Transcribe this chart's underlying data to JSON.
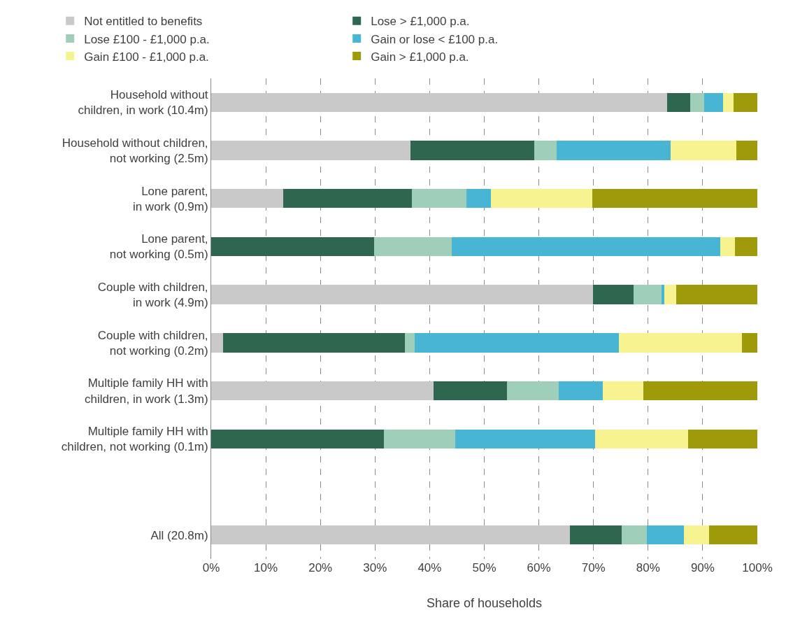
{
  "chart_data": {
    "type": "bar",
    "orientation": "horizontal",
    "stacked": true,
    "xlabel": "Share of households",
    "categories": [
      "Household without\nchildren, in work (10.4m)",
      "Household without children,\nnot working (2.5m)",
      "Lone parent,\nin work (0.9m)",
      "Lone parent,\nnot working (0.5m)",
      "Couple with children,\nin work (4.9m)",
      "Couple with children,\nnot working (0.2m)",
      "Multiple family HH with\nchildren, in work (1.3m)",
      "Multiple family HH with\nchildren, not working (0.1m)",
      null,
      "All (20.8m)"
    ],
    "series": [
      {
        "name": "Not entitled to benefits",
        "color": "#c9c9c9",
        "values": [
          83.5,
          36.5,
          13.2,
          0,
          69.9,
          2.2,
          40.7,
          0,
          null,
          65.7
        ]
      },
      {
        "name": "Lose > £1,000 p.a.",
        "color": "#2f6650",
        "values": [
          4.2,
          22.7,
          23.5,
          29.8,
          7.4,
          33.3,
          13.5,
          31.6,
          null,
          9.5
        ]
      },
      {
        "name": "Lose £100 - £1,000 p.a.",
        "color": "#9fcfb9",
        "values": [
          2.6,
          4.1,
          10.0,
          14.2,
          5.2,
          1.8,
          9.4,
          13.1,
          null,
          4.6
        ]
      },
      {
        "name": "Gain or lose < £100 p.a.",
        "color": "#48b5d5",
        "values": [
          3.4,
          20.8,
          4.5,
          49.2,
          0.5,
          37.3,
          8.1,
          25.6,
          null,
          6.8
        ]
      },
      {
        "name": "Gain £100 - £1,000 p.a.",
        "color": "#f7f391",
        "values": [
          1.9,
          12.1,
          18.6,
          2.7,
          2.1,
          22.6,
          7.4,
          17.0,
          null,
          4.6
        ]
      },
      {
        "name": "Gain > £1,000 p.a.",
        "color": "#9e9a0a",
        "values": [
          4.4,
          3.8,
          30.2,
          4.1,
          14.9,
          2.8,
          20.9,
          12.7,
          null,
          8.8
        ]
      }
    ],
    "xlim": [
      0,
      100
    ],
    "xticks": [
      {
        "value": 0,
        "label": "0%"
      },
      {
        "value": 10,
        "label": "10%"
      },
      {
        "value": 20,
        "label": "20%"
      },
      {
        "value": 30,
        "label": "30%"
      },
      {
        "value": 40,
        "label": "40%"
      },
      {
        "value": 50,
        "label": "50%"
      },
      {
        "value": 60,
        "label": "60%"
      },
      {
        "value": 70,
        "label": "70%"
      },
      {
        "value": 80,
        "label": "80%"
      },
      {
        "value": 90,
        "label": "90%"
      },
      {
        "value": 100,
        "label": "100%"
      }
    ],
    "grid": "x",
    "legend": "top"
  }
}
